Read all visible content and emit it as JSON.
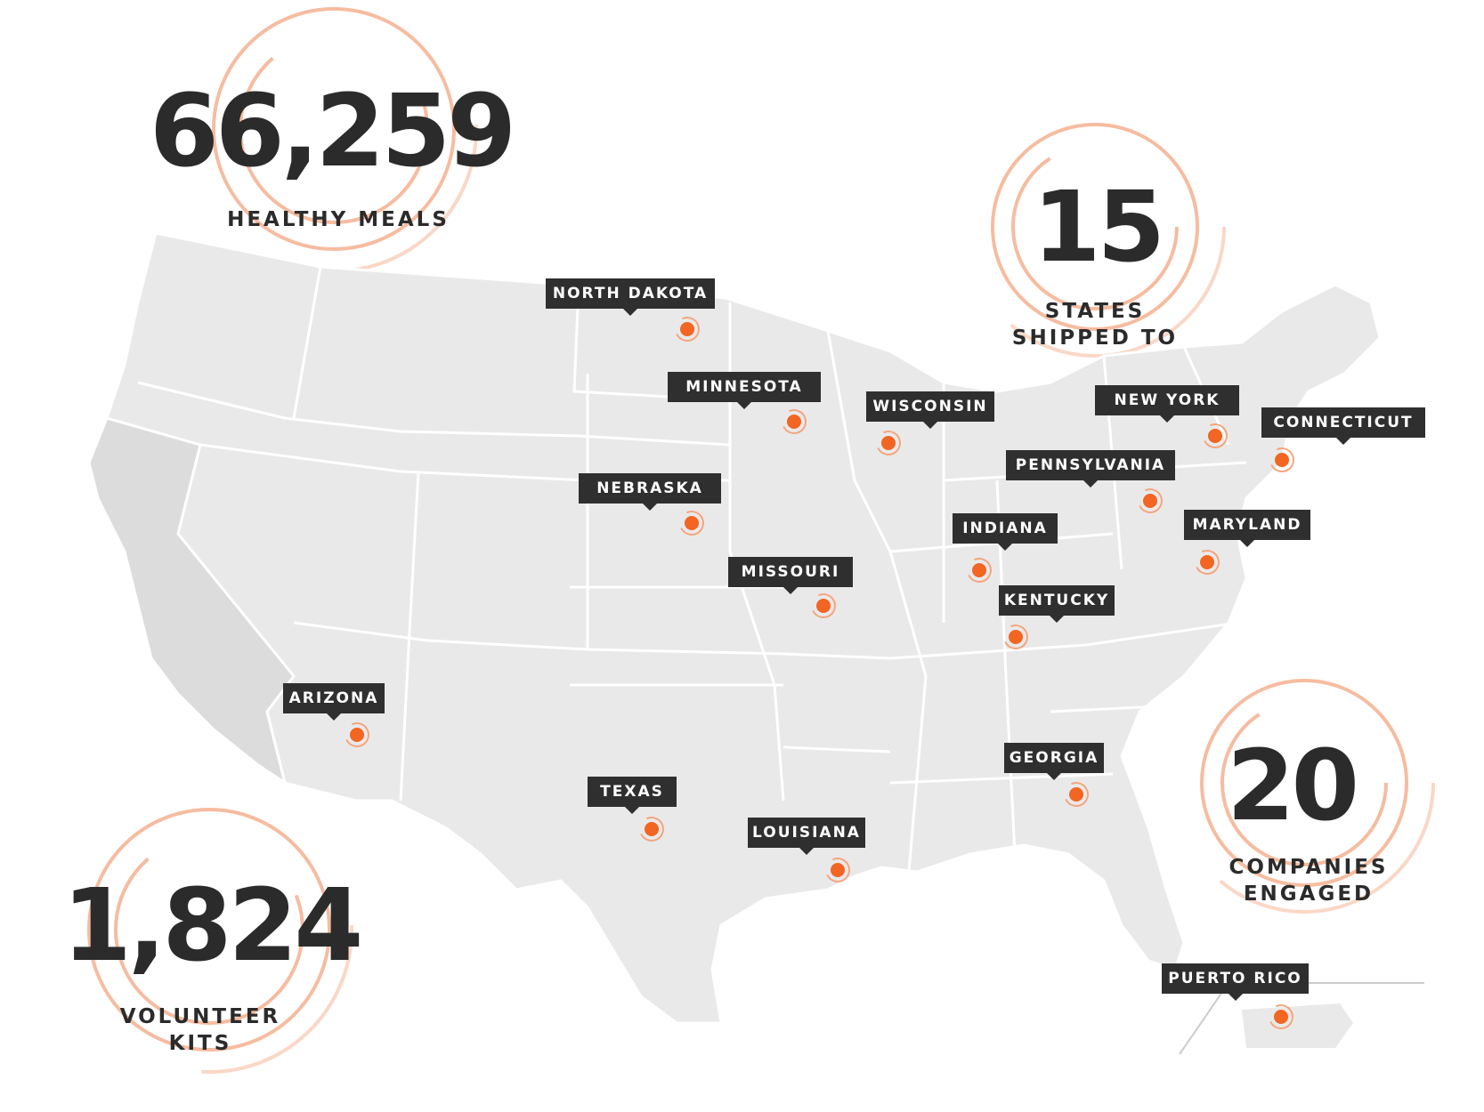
{
  "colors": {
    "accent": "#f26522",
    "ring": "#f5b08f",
    "tag_background": "#2f2f2f",
    "text_dark": "#2b2b2b",
    "map_land": "#e9e9e9",
    "map_land_dark": "#dcdcdc",
    "map_border": "#ffffff"
  },
  "stats": {
    "meals": {
      "value": "66,259",
      "label": "HEALTHY MEALS"
    },
    "states": {
      "value": "15",
      "label_line1": "STATES",
      "label_line2": "SHIPPED TO"
    },
    "companies": {
      "value": "20",
      "label_line1": "COMPANIES",
      "label_line2": "ENGAGED"
    },
    "kits": {
      "value": "1,824",
      "label_line1": "VOLUNTEER",
      "label_line2": "KITS"
    }
  },
  "states": [
    {
      "name": "NORTH DAKOTA"
    },
    {
      "name": "MINNESOTA"
    },
    {
      "name": "WISCONSIN"
    },
    {
      "name": "NEW YORK"
    },
    {
      "name": "CONNECTICUT"
    },
    {
      "name": "PENNSYLVANIA"
    },
    {
      "name": "NEBRASKA"
    },
    {
      "name": "INDIANA"
    },
    {
      "name": "MARYLAND"
    },
    {
      "name": "MISSOURI"
    },
    {
      "name": "KENTUCKY"
    },
    {
      "name": "ARIZONA"
    },
    {
      "name": "GEORGIA"
    },
    {
      "name": "TEXAS"
    },
    {
      "name": "LOUISIANA"
    },
    {
      "name": "PUERTO RICO"
    }
  ],
  "icons": [
    "location-marker-icon"
  ]
}
